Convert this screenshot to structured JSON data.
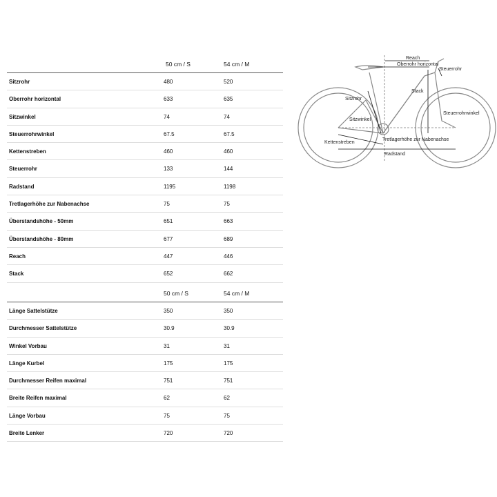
{
  "table1": {
    "columns": [
      "50 cm / S",
      "54 cm / M"
    ],
    "rows": [
      {
        "label": "Sitzrohr",
        "s": "480",
        "m": "520"
      },
      {
        "label": "Oberrohr horizontal",
        "s": "633",
        "m": "635"
      },
      {
        "label": "Sitzwinkel",
        "s": "74",
        "m": "74"
      },
      {
        "label": "Steuerrohrwinkel",
        "s": "67.5",
        "m": "67.5"
      },
      {
        "label": "Kettenstreben",
        "s": "460",
        "m": "460"
      },
      {
        "label": "Steuerrohr",
        "s": "133",
        "m": "144"
      },
      {
        "label": "Radstand",
        "s": "1195",
        "m": "1198"
      },
      {
        "label": "Tretlagerhöhe zur Nabenachse",
        "s": "75",
        "m": "75"
      },
      {
        "label": "Überstandshöhe - 50mm",
        "s": "651",
        "m": "663"
      },
      {
        "label": "Überstandshöhe - 80mm",
        "s": "677",
        "m": "689"
      },
      {
        "label": "Reach",
        "s": "447",
        "m": "446"
      },
      {
        "label": "Stack",
        "s": "652",
        "m": "662"
      }
    ]
  },
  "table2": {
    "columns": [
      "50 cm / S",
      "54 cm / M"
    ],
    "rows": [
      {
        "label": "Länge Sattelstütze",
        "s": "350",
        "m": "350"
      },
      {
        "label": "Durchmesser Sattelstütze",
        "s": "30.9",
        "m": "30.9"
      },
      {
        "label": "Winkel Vorbau",
        "s": "31",
        "m": "31"
      },
      {
        "label": "Länge Kurbel",
        "s": "175",
        "m": "175"
      },
      {
        "label": "Durchmesser Reifen maximal",
        "s": "751",
        "m": "751"
      },
      {
        "label": "Breite Reifen maximal",
        "s": "62",
        "m": "62"
      },
      {
        "label": "Länge Vorbau",
        "s": "75",
        "m": "75"
      },
      {
        "label": "Breite Lenker",
        "s": "720",
        "m": "720"
      }
    ]
  },
  "diagram": {
    "reach": "Reach",
    "oberrohr": "Oberrohr horizontal",
    "steuerrohr": "Steuerrohr",
    "stack": "Stack",
    "sitzrohr": "Sitzrohr",
    "steuerrohrwinkel": "Steuerrohrwinkel",
    "sitzwinkel": "Sitzwinkel",
    "tretlager": "Tretlagerhöhe zur Nabenachse",
    "kettenstreben": "Kettenstreben",
    "radstand": "Radstand"
  }
}
